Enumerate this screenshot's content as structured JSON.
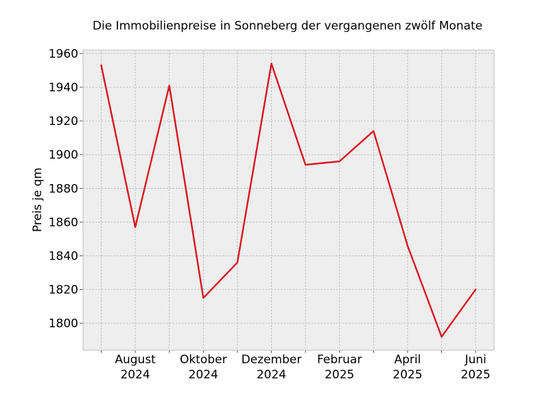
{
  "chart_data": {
    "type": "line",
    "title": "Die Immobilienpreise in Sonneberg der vergangenen zwölf Monate",
    "xlabel": "",
    "ylabel": "Preis je qm",
    "x": [
      "2024-07",
      "2024-08",
      "2024-09",
      "2024-10",
      "2024-11",
      "2024-12",
      "2025-01",
      "2025-02",
      "2025-03",
      "2025-04",
      "2025-05",
      "2025-06"
    ],
    "series": [
      {
        "values": [
          1953,
          1857,
          1941,
          1815,
          1836,
          1954,
          1894,
          1896,
          1914,
          1846,
          1792,
          1820
        ]
      }
    ],
    "ylim": [
      1784,
      1962
    ],
    "yticks": [
      1800,
      1820,
      1840,
      1860,
      1880,
      1900,
      1920,
      1940,
      1960
    ],
    "xtick_labels": [
      {
        "month": "August",
        "year": "2024"
      },
      {
        "month": "Oktober",
        "year": "2024"
      },
      {
        "month": "Dezember",
        "year": "2024"
      },
      {
        "month": "Februar",
        "year": "2025"
      },
      {
        "month": "April",
        "year": "2025"
      },
      {
        "month": "Juni",
        "year": "2025"
      }
    ],
    "grid": true,
    "colors": {
      "line": "#d9131f",
      "plot_background": "#eeeeee",
      "frame": "#bcbcbc"
    }
  }
}
